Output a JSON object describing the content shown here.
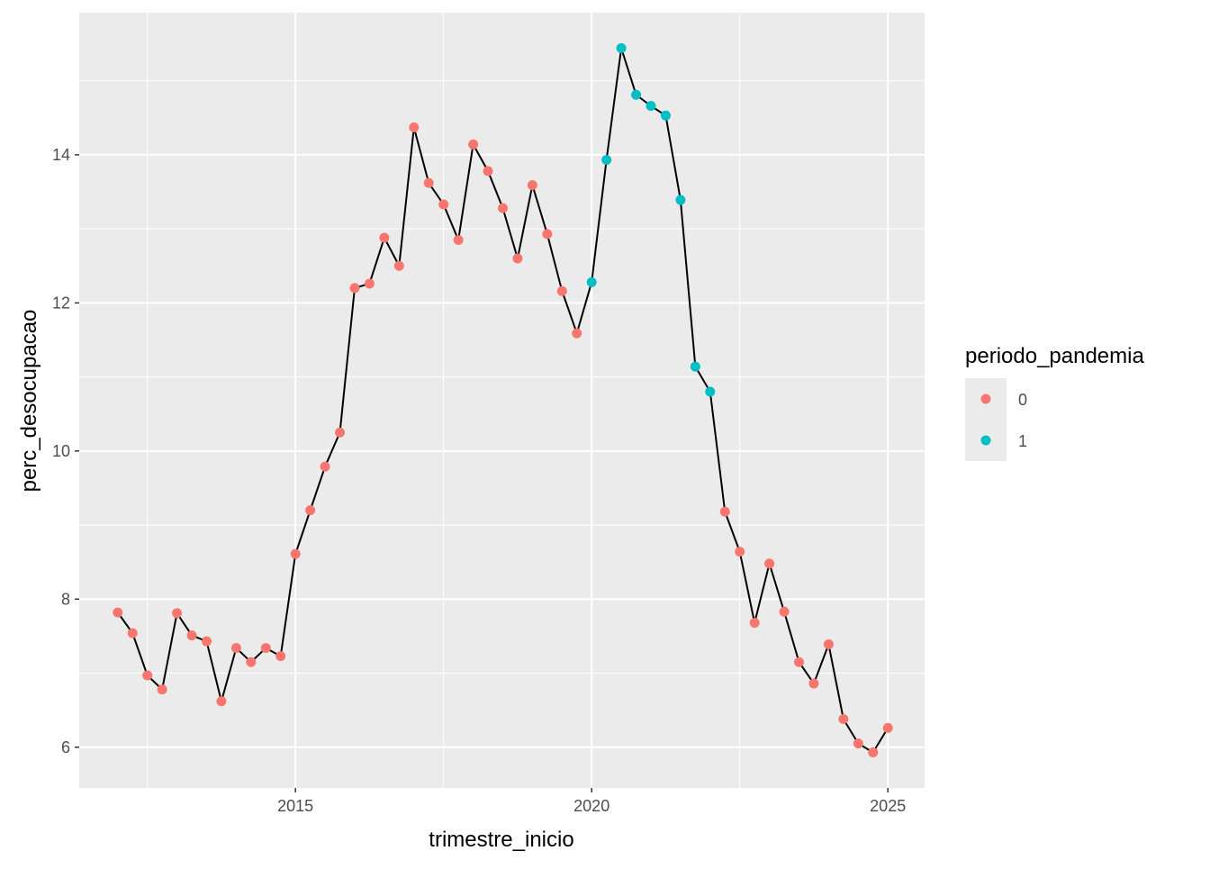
{
  "chart_data": {
    "type": "line",
    "xlabel": "trimestre_inicio",
    "ylabel": "perc_desocupacao",
    "x": [
      2012,
      2012.25,
      2012.5,
      2012.75,
      2013,
      2013.25,
      2013.5,
      2013.75,
      2014,
      2014.25,
      2014.5,
      2014.75,
      2015,
      2015.25,
      2015.5,
      2015.75,
      2016,
      2016.25,
      2016.5,
      2016.75,
      2017,
      2017.25,
      2017.5,
      2017.75,
      2018,
      2018.25,
      2018.5,
      2018.75,
      2019,
      2019.25,
      2019.5,
      2019.75,
      2020,
      2020.25,
      2020.5,
      2020.75,
      2021,
      2021.25,
      2021.5,
      2021.75,
      2022,
      2022.25,
      2022.5,
      2022.75,
      2023,
      2023.25,
      2023.5,
      2023.75,
      2024,
      2024.25,
      2024.5,
      2024.75,
      2025
    ],
    "values": [
      7.82,
      7.54,
      6.97,
      6.78,
      7.81,
      7.51,
      7.43,
      6.62,
      7.34,
      7.15,
      7.34,
      7.23,
      8.61,
      9.2,
      9.79,
      10.25,
      12.2,
      12.26,
      12.88,
      12.5,
      14.37,
      13.62,
      13.33,
      12.85,
      14.14,
      13.78,
      13.28,
      12.6,
      13.59,
      12.93,
      12.16,
      11.59,
      12.28,
      13.93,
      15.44,
      14.81,
      14.66,
      14.53,
      13.39,
      11.14,
      10.8,
      9.18,
      8.64,
      7.68,
      8.48,
      7.83,
      7.15,
      6.86,
      7.39,
      6.38,
      6.05,
      5.93,
      6.26
    ],
    "group": [
      0,
      0,
      0,
      0,
      0,
      0,
      0,
      0,
      0,
      0,
      0,
      0,
      0,
      0,
      0,
      0,
      0,
      0,
      0,
      0,
      0,
      0,
      0,
      0,
      0,
      0,
      0,
      0,
      0,
      0,
      0,
      0,
      1,
      1,
      1,
      1,
      1,
      1,
      1,
      1,
      1,
      0,
      0,
      0,
      0,
      0,
      0,
      0,
      0,
      0,
      0,
      0,
      0
    ],
    "line_color": "#000000",
    "legend": {
      "title": "periodo_pandemia",
      "entries": [
        {
          "label": "0",
          "color": "#F8766D"
        },
        {
          "label": "1",
          "color": "#00BFC4"
        }
      ]
    },
    "xlim": [
      2011.35,
      2025.62
    ],
    "ylim": [
      5.45,
      15.92
    ],
    "xticks": [
      2015,
      2020,
      2025
    ],
    "yticks": [
      6,
      8,
      10,
      12,
      14
    ],
    "grid": true
  }
}
